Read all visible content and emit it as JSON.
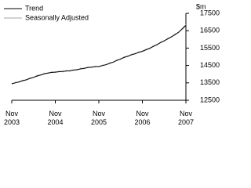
{
  "chart_data": {
    "type": "line",
    "y_unit": "$m",
    "categories": [
      "Nov 2003",
      null,
      null,
      null,
      null,
      null,
      null,
      null,
      null,
      null,
      null,
      null,
      "Nov 2004",
      null,
      null,
      null,
      null,
      null,
      null,
      null,
      null,
      null,
      null,
      null,
      "Nov 2005",
      null,
      null,
      null,
      null,
      null,
      null,
      null,
      null,
      null,
      null,
      null,
      "Nov 2006",
      null,
      null,
      null,
      null,
      null,
      null,
      null,
      null,
      null,
      null,
      null,
      "Nov 2007"
    ],
    "series": [
      {
        "name": "Trend",
        "color": "#000000",
        "values": [
          13450,
          13500,
          13560,
          13620,
          13680,
          13750,
          13820,
          13890,
          13960,
          14020,
          14070,
          14100,
          14120,
          14140,
          14160,
          14180,
          14200,
          14230,
          14260,
          14300,
          14340,
          14380,
          14410,
          14430,
          14450,
          14490,
          14550,
          14620,
          14700,
          14790,
          14880,
          14960,
          15040,
          15110,
          15180,
          15250,
          15320,
          15400,
          15490,
          15590,
          15700,
          15810,
          15920,
          16030,
          16150,
          16270,
          16420,
          16600,
          16800
        ]
      },
      {
        "name": "Seasonally Adjusted",
        "color": "#a6a6a6",
        "values": [
          13420,
          13540,
          13530,
          13660,
          13650,
          13790,
          13800,
          13940,
          13930,
          14060,
          14040,
          14140,
          14090,
          14170,
          14130,
          14210,
          14170,
          14260,
          14230,
          14340,
          14310,
          14420,
          14380,
          14460,
          14420,
          14520,
          14530,
          14660,
          14680,
          14830,
          14850,
          15000,
          15010,
          15150,
          15150,
          15290,
          15290,
          15440,
          15460,
          15630,
          15670,
          15850,
          15890,
          16070,
          16120,
          16310,
          16390,
          16640,
          16850
        ]
      }
    ],
    "ylim": [
      12500,
      17500
    ],
    "yticks": [
      12500,
      13500,
      14500,
      15500,
      16500,
      17500
    ]
  }
}
